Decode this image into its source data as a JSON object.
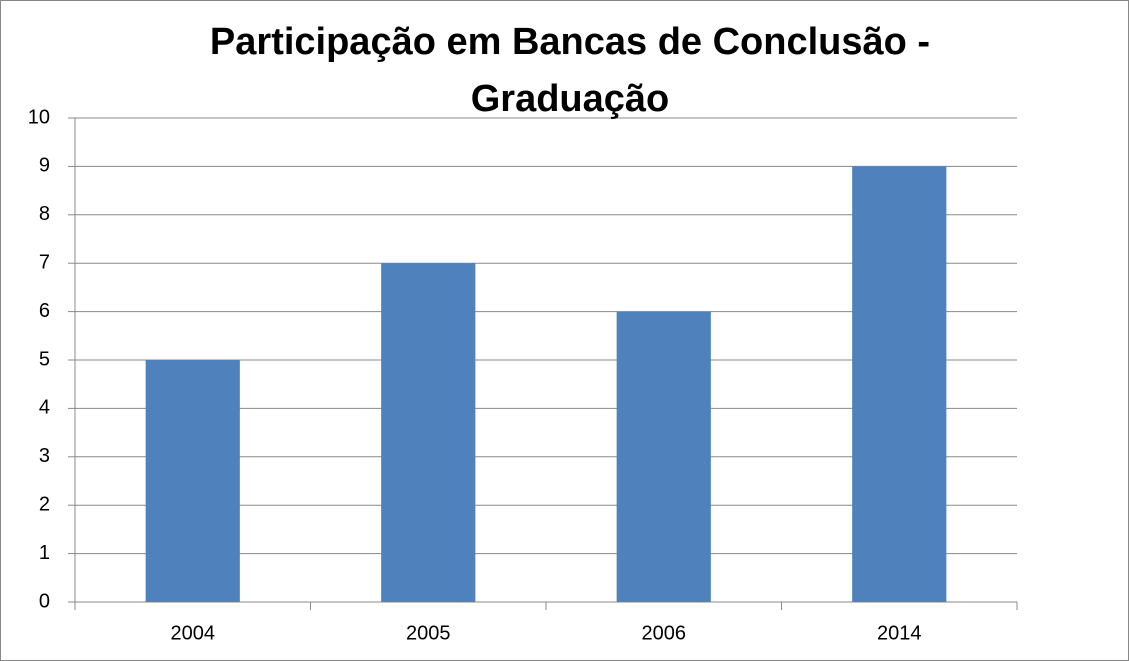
{
  "chart_data": {
    "type": "bar",
    "title": "Participação em Bancas de Conclusão - Graduação",
    "categories": [
      "2004",
      "2005",
      "2006",
      "2014"
    ],
    "values": [
      5,
      7,
      6,
      9
    ],
    "color": "#4f81bd",
    "ylim": [
      0,
      10
    ],
    "yticks": [
      0,
      1,
      2,
      3,
      4,
      5,
      6,
      7,
      8,
      9,
      10
    ],
    "grid": true
  }
}
